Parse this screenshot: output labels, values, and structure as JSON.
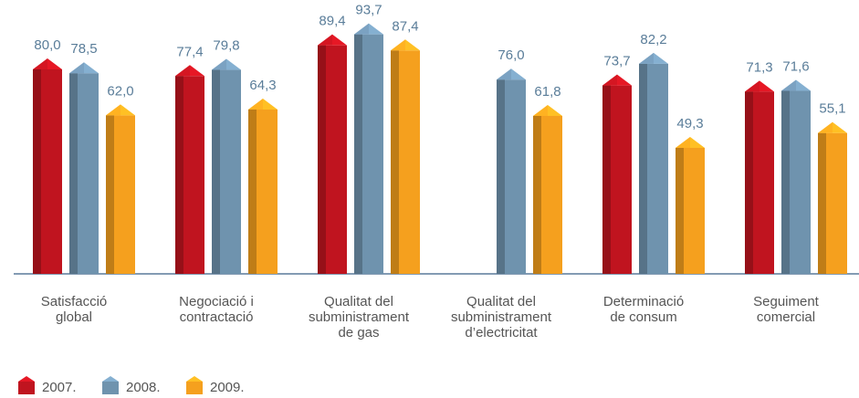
{
  "chart_data": {
    "type": "bar",
    "categories": [
      "Satisfacció\nglobal",
      "Negociació i\ncontractació",
      "Qualitat del\nsubministrament\nde gas",
      "Qualitat del\nsubministrament\nd’electricitat",
      "Determinació\nde consum",
      "Seguiment\ncomercial"
    ],
    "series": [
      {
        "name": "2007.",
        "color": "#c0141f",
        "values": [
          80.0,
          77.4,
          89.4,
          null,
          73.7,
          71.3
        ],
        "value_labels": [
          "80,0",
          "77,4",
          "89,4",
          null,
          "73,7",
          "71,3"
        ]
      },
      {
        "name": "2008.",
        "color": "#6f93ae",
        "values": [
          78.5,
          79.8,
          93.7,
          76.0,
          82.2,
          71.6
        ],
        "value_labels": [
          "78,5",
          "79,8",
          "93,7",
          "76,0",
          "82,2",
          "71,6"
        ]
      },
      {
        "name": "2009.",
        "color": "#f5a01e",
        "values": [
          62.0,
          64.3,
          87.4,
          61.8,
          49.3,
          55.1
        ],
        "value_labels": [
          "62,0",
          "64,3",
          "87,4",
          "61,8",
          "49,3",
          "55,1"
        ]
      }
    ],
    "ylim": [
      0,
      100
    ]
  }
}
